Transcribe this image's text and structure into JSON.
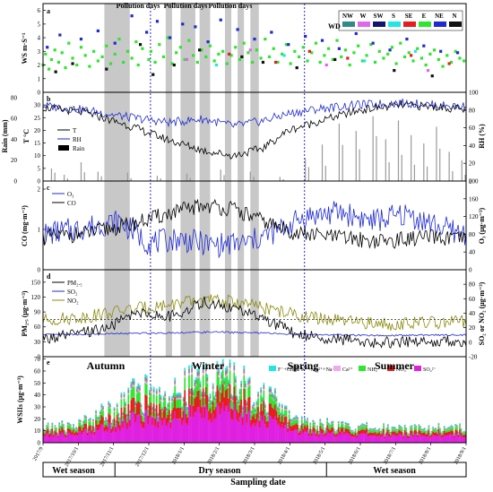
{
  "x_axis_title": "Sampling date",
  "x_ticks": [
    "2017/9",
    "2017/10/1",
    "2017/11/1",
    "2017/12/1",
    "2018/1/1",
    "2018/2/1",
    "2018/3/1",
    "2018/4/1",
    "2018/5/1",
    "2018/6/1",
    "2018/7/1",
    "2018/8/1",
    "2018/9/1"
  ],
  "seasons": [
    "Autumn",
    "Winter",
    "Spring",
    "Summer"
  ],
  "periods": [
    "Wet season",
    "Dry season",
    "Wet season"
  ],
  "pollution_label": "Pollution days",
  "pollution_label_instances": [
    "Pollution days",
    "Pollution days",
    "Pollution days"
  ],
  "colors": {
    "T": "#000000",
    "RH": "#1f2bd0",
    "Rain": "#9a9a9a",
    "O3": "#1f2bd0",
    "CO": "#000000",
    "PM25": "#000000",
    "SO2": "#1f2bd0",
    "NO2": "#8b8b10",
    "pollution_band": "#c8c8c8",
    "season_divider": "#2a2ad8"
  },
  "chart_data": [
    {
      "panel": "a",
      "type": "scatter",
      "ylabel": "WS m·S⁻¹",
      "ylim": [
        0,
        6.5
      ],
      "yticks": [
        "0",
        "1",
        "2",
        "3",
        "4",
        "5",
        "6"
      ],
      "legend_title": "WD",
      "legend": [
        {
          "name": "NW",
          "color": "#2e8b8b"
        },
        {
          "name": "W",
          "color": "#e066ee"
        },
        {
          "name": "SW",
          "color": "#141470"
        },
        {
          "name": "S",
          "color": "#22e6e6"
        },
        {
          "name": "SE",
          "color": "#e81c1c"
        },
        {
          "name": "E",
          "color": "#2ee62e"
        },
        {
          "name": "NE",
          "color": "#1f2bd0"
        },
        {
          "name": "N",
          "color": "#111111"
        }
      ],
      "series": [
        {
          "name": "E",
          "color": "#2ee62e",
          "x": [
            0.0,
            0.006,
            0.014,
            0.02,
            0.028,
            0.037,
            0.045,
            0.053,
            0.061,
            0.07,
            0.08,
            0.09,
            0.1,
            0.11,
            0.12,
            0.13,
            0.14,
            0.15,
            0.16,
            0.17,
            0.18,
            0.19,
            0.2,
            0.21,
            0.22,
            0.225,
            0.235,
            0.25,
            0.255,
            0.265,
            0.275,
            0.285,
            0.295,
            0.305,
            0.315,
            0.325,
            0.335,
            0.345,
            0.355,
            0.365,
            0.375,
            0.385,
            0.395,
            0.405,
            0.415,
            0.425,
            0.435,
            0.445,
            0.455,
            0.465,
            0.475,
            0.485,
            0.495,
            0.505,
            0.515,
            0.525,
            0.535,
            0.545,
            0.555,
            0.565,
            0.575,
            0.585,
            0.595,
            0.605,
            0.615,
            0.625,
            0.635,
            0.645,
            0.655,
            0.665,
            0.675,
            0.685,
            0.695,
            0.705,
            0.715,
            0.725,
            0.735,
            0.745,
            0.755,
            0.765,
            0.775,
            0.785,
            0.795,
            0.805,
            0.815,
            0.825,
            0.835,
            0.845,
            0.855,
            0.865,
            0.875,
            0.885,
            0.895,
            0.905,
            0.915,
            0.925,
            0.935,
            0.945,
            0.955,
            0.965,
            0.975,
            0.985,
            0.995
          ],
          "y": [
            2.0,
            2.8,
            1.7,
            2.4,
            3.1,
            2.2,
            2.9,
            1.8,
            3.6,
            2.5,
            2.0,
            3.3,
            2.7,
            1.9,
            3.0,
            2.3,
            2.6,
            3.4,
            2.1,
            2.8,
            3.9,
            2.2,
            3.0,
            2.5,
            3.7,
            2.0,
            3.2,
            2.4,
            3.0,
            2.2,
            3.5,
            2.6,
            4.0,
            2.1,
            2.9,
            3.3,
            2.4,
            3.8,
            2.7,
            2.2,
            3.1,
            2.6,
            3.4,
            2.3,
            2.8,
            3.0,
            2.1,
            2.7,
            3.3,
            2.4,
            3.6,
            2.9,
            2.2,
            3.1,
            2.5,
            3.9,
            2.6,
            3.2,
            2.2,
            2.8,
            3.5,
            2.1,
            3.0,
            2.6,
            3.3,
            2.3,
            2.9,
            3.6,
            2.2,
            2.7,
            3.2,
            2.4,
            3.8,
            2.6,
            3.1,
            2.0,
            2.9,
            3.4,
            2.3,
            2.7,
            3.5,
            2.2,
            3.0,
            2.5,
            2.8,
            3.3,
            2.1,
            3.6,
            2.6,
            2.9,
            2.3,
            3.2,
            2.5,
            2.0,
            2.8,
            3.1,
            2.4,
            1.9,
            2.7,
            2.2,
            3.0,
            2.5,
            2.3
          ]
        },
        {
          "name": "NE",
          "color": "#1f2bd0",
          "x": [
            0.01,
            0.04,
            0.09,
            0.13,
            0.17,
            0.21,
            0.245,
            0.27,
            0.3,
            0.33,
            0.36,
            0.39,
            0.42,
            0.46,
            0.5,
            0.54,
            0.58,
            0.62,
            0.66,
            0.7,
            0.74,
            0.78,
            0.82,
            0.86,
            0.9,
            0.94,
            0.98
          ],
          "y": [
            3.3,
            4.2,
            3.9,
            4.5,
            3.6,
            5.6,
            4.4,
            5.2,
            4.0,
            5.0,
            4.8,
            3.7,
            5.3,
            4.6,
            3.9,
            4.4,
            3.5,
            4.1,
            3.8,
            3.2,
            4.3,
            3.6,
            3.1,
            3.9,
            3.4,
            3.0,
            2.9
          ]
        },
        {
          "name": "N",
          "color": "#111111",
          "x": [
            0.03,
            0.07,
            0.15,
            0.23,
            0.26,
            0.31,
            0.37,
            0.47,
            0.52,
            0.6,
            0.69,
            0.83,
            0.92
          ],
          "y": [
            1.5,
            2.1,
            1.7,
            3.5,
            1.3,
            2.0,
            3.1,
            2.6,
            2.2,
            1.8,
            2.4,
            1.6,
            1.2
          ]
        },
        {
          "name": "SE",
          "color": "#e81c1c",
          "x": [
            0.44,
            0.55,
            0.63,
            0.72,
            0.87,
            0.96
          ],
          "y": [
            2.8,
            2.2,
            3.0,
            2.5,
            2.7,
            2.1
          ]
        },
        {
          "name": "W",
          "color": "#e066ee",
          "x": [
            0.34,
            0.49,
            0.67,
            0.91
          ],
          "y": [
            2.4,
            3.1,
            2.0,
            1.6
          ]
        },
        {
          "name": "S",
          "color": "#22e6e6",
          "x": [
            0.41,
            0.57,
            0.76,
            0.88
          ],
          "y": [
            2.0,
            2.7,
            2.3,
            3.0
          ]
        }
      ]
    },
    {
      "panel": "b",
      "type": "line",
      "ylabel_left": "T °C",
      "ylabel_right": "RH (%)",
      "ylabel_outer": "Rain (mm)",
      "ylim_left": [
        0,
        35
      ],
      "yticks_left": [
        "0",
        "5",
        "10",
        "15",
        "20",
        "25",
        "30"
      ],
      "ylim_right": [
        0,
        100
      ],
      "yticks_right": [
        "0",
        "20",
        "40",
        "60",
        "80",
        "100"
      ],
      "ylim_outer": [
        0,
        85
      ],
      "yticks_outer": [
        "0",
        "20",
        "40",
        "60",
        "80"
      ],
      "legend": [
        "T",
        "RH",
        "Rain"
      ],
      "series": [
        {
          "name": "T",
          "key_points": [
            [
              0.0,
              29
            ],
            [
              0.1,
              27
            ],
            [
              0.2,
              22
            ],
            [
              0.3,
              16
            ],
            [
              0.38,
              12
            ],
            [
              0.45,
              10
            ],
            [
              0.52,
              13
            ],
            [
              0.58,
              20
            ],
            [
              0.66,
              24
            ],
            [
              0.75,
              28
            ],
            [
              0.85,
              30
            ],
            [
              0.95,
              29
            ],
            [
              1.0,
              28
            ]
          ]
        },
        {
          "name": "RH",
          "key_points": [
            [
              0.0,
              85
            ],
            [
              0.1,
              80
            ],
            [
              0.2,
              72
            ],
            [
              0.3,
              66
            ],
            [
              0.38,
              70
            ],
            [
              0.45,
              62
            ],
            [
              0.52,
              68
            ],
            [
              0.58,
              76
            ],
            [
              0.66,
              82
            ],
            [
              0.75,
              86
            ],
            [
              0.85,
              88
            ],
            [
              0.95,
              85
            ],
            [
              1.0,
              84
            ]
          ]
        },
        {
          "name": "Rain",
          "key_points": [
            [
              0.02,
              12
            ],
            [
              0.05,
              6
            ],
            [
              0.09,
              18
            ],
            [
              0.13,
              9
            ],
            [
              0.2,
              8
            ],
            [
              0.27,
              5
            ],
            [
              0.34,
              7
            ],
            [
              0.42,
              11
            ],
            [
              0.49,
              9
            ],
            [
              0.56,
              4
            ],
            [
              0.62,
              22
            ],
            [
              0.66,
              35
            ],
            [
              0.7,
              55
            ],
            [
              0.74,
              48
            ],
            [
              0.78,
              62
            ],
            [
              0.81,
              40
            ],
            [
              0.84,
              58
            ],
            [
              0.87,
              44
            ],
            [
              0.9,
              36
            ],
            [
              0.93,
              52
            ],
            [
              0.96,
              28
            ],
            [
              0.99,
              20
            ]
          ]
        }
      ]
    },
    {
      "panel": "c",
      "type": "line",
      "ylabel_left": "CO (mg·m⁻³)",
      "ylabel_right": "O₃ (μg·m⁻³)",
      "ylim_left": [
        0,
        2.2
      ],
      "yticks_left": [
        "0",
        "1",
        "2"
      ],
      "ylim_right": [
        0,
        200
      ],
      "yticks_right": [
        "0",
        "40",
        "80",
        "120",
        "160",
        "200"
      ],
      "legend": [
        "O₃",
        "CO"
      ],
      "series": [
        {
          "name": "O₃",
          "key_points": [
            [
              0.0,
              80
            ],
            [
              0.1,
              95
            ],
            [
              0.18,
              110
            ],
            [
              0.25,
              60
            ],
            [
              0.32,
              70
            ],
            [
              0.4,
              55
            ],
            [
              0.48,
              60
            ],
            [
              0.55,
              85
            ],
            [
              0.62,
              120
            ],
            [
              0.7,
              130
            ],
            [
              0.78,
              110
            ],
            [
              0.86,
              125
            ],
            [
              0.94,
              95
            ],
            [
              1.0,
              80
            ]
          ]
        },
        {
          "name": "CO",
          "key_points": [
            [
              0.0,
              0.8
            ],
            [
              0.1,
              0.9
            ],
            [
              0.2,
              1.1
            ],
            [
              0.3,
              1.4
            ],
            [
              0.38,
              1.6
            ],
            [
              0.45,
              1.5
            ],
            [
              0.52,
              1.2
            ],
            [
              0.6,
              0.9
            ],
            [
              0.7,
              0.8
            ],
            [
              0.8,
              0.7
            ],
            [
              0.9,
              0.8
            ],
            [
              1.0,
              0.75
            ]
          ]
        }
      ]
    },
    {
      "panel": "d",
      "type": "line",
      "ylabel_left": "PM₂.₅ (μg·m⁻³)",
      "ylabel_right": "SO₂ or NO₂ (μg·m⁻³)",
      "ylim_left": [
        0,
        175
      ],
      "yticks_left": [
        "0",
        "30",
        "60",
        "90",
        "120",
        "150"
      ],
      "ylim_right": [
        -20,
        100
      ],
      "yticks_right": [
        "-20",
        "0",
        "20",
        "40",
        "60",
        "80"
      ],
      "legend": [
        "PM₂.₅",
        "SO₂",
        "NO₂"
      ],
      "reference_line": 75,
      "series": [
        {
          "name": "PM₂.₅",
          "key_points": [
            [
              0.0,
              35
            ],
            [
              0.08,
              45
            ],
            [
              0.16,
              60
            ],
            [
              0.22,
              90
            ],
            [
              0.3,
              80
            ],
            [
              0.38,
              110
            ],
            [
              0.46,
              95
            ],
            [
              0.54,
              70
            ],
            [
              0.6,
              45
            ],
            [
              0.7,
              35
            ],
            [
              0.8,
              28
            ],
            [
              0.9,
              30
            ],
            [
              1.0,
              32
            ]
          ]
        },
        {
          "name": "SO₂",
          "key_points": [
            [
              0.0,
              10
            ],
            [
              0.1,
              11
            ],
            [
              0.2,
              12
            ],
            [
              0.3,
              13
            ],
            [
              0.4,
              14
            ],
            [
              0.5,
              13
            ],
            [
              0.6,
              11
            ],
            [
              0.7,
              10
            ],
            [
              0.8,
              9
            ],
            [
              0.9,
              10
            ],
            [
              1.0,
              10
            ]
          ]
        },
        {
          "name": "NO₂",
          "key_points": [
            [
              0.0,
              30
            ],
            [
              0.1,
              35
            ],
            [
              0.2,
              45
            ],
            [
              0.3,
              52
            ],
            [
              0.38,
              58
            ],
            [
              0.46,
              55
            ],
            [
              0.54,
              45
            ],
            [
              0.62,
              35
            ],
            [
              0.72,
              28
            ],
            [
              0.82,
              25
            ],
            [
              0.92,
              27
            ],
            [
              1.0,
              28
            ]
          ]
        }
      ]
    },
    {
      "panel": "e",
      "type": "bar",
      "ylabel": "WSIIs (μg·m⁻³)",
      "ylim": [
        0,
        72
      ],
      "yticks": [
        "0",
        "10",
        "20",
        "30",
        "40",
        "50",
        "60",
        "70"
      ],
      "legend": [
        "F⁻+Cl⁻",
        "K⁺+Mg²⁺+Na⁺",
        "Ca²⁺",
        "NH₄⁺",
        "NO₃⁻",
        "SO₄²⁻"
      ],
      "legend_colors": [
        "#22e6e6",
        "#8a8a8a",
        "#f2a6f2",
        "#2ee62e",
        "#e81c1c",
        "#e020e0"
      ],
      "total_envelope": [
        [
          0.0,
          12
        ],
        [
          0.08,
          15
        ],
        [
          0.16,
          28
        ],
        [
          0.22,
          42
        ],
        [
          0.3,
          38
        ],
        [
          0.38,
          55
        ],
        [
          0.46,
          50
        ],
        [
          0.54,
          35
        ],
        [
          0.6,
          18
        ],
        [
          0.7,
          14
        ],
        [
          0.8,
          12
        ],
        [
          0.9,
          13
        ],
        [
          1.0,
          12
        ]
      ]
    }
  ]
}
